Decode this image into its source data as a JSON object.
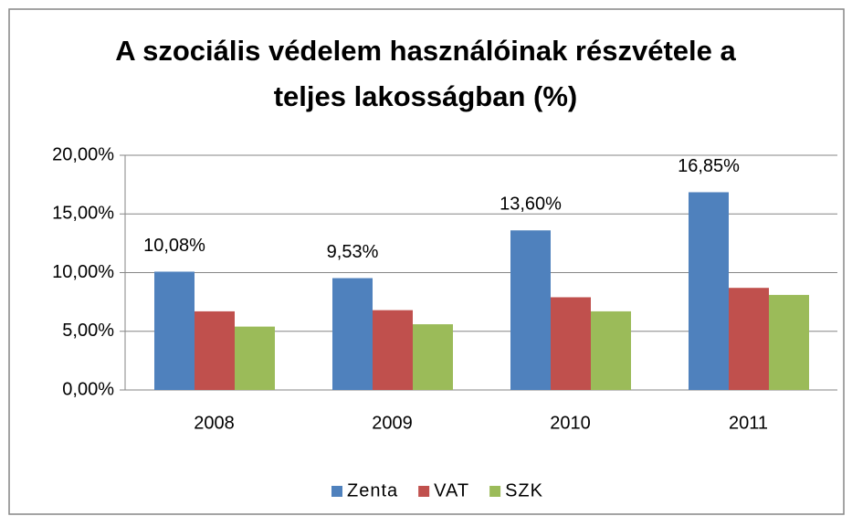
{
  "chart_data": {
    "type": "bar",
    "title": [
      "A szociális védelem használóinak részvétele  a",
      "teljes lakosságban (%)"
    ],
    "categories": [
      "2008",
      "2009",
      "2010",
      "2011"
    ],
    "series": [
      {
        "name": "Zenta",
        "color": "#4f81bd",
        "values": [
          10.08,
          9.53,
          13.6,
          16.85
        ],
        "value_labels": [
          "10,08%",
          "9,53%",
          "13,60%",
          "16,85%"
        ]
      },
      {
        "name": "VAT",
        "color": "#c0504d",
        "values": [
          6.7,
          6.8,
          7.9,
          8.7
        ]
      },
      {
        "name": "SZK",
        "color": "#9bbb59",
        "values": [
          5.4,
          5.6,
          6.7,
          8.1
        ]
      }
    ],
    "ylim": [
      0,
      20
    ],
    "yticks": [
      {
        "value": 0,
        "label": "0,00%"
      },
      {
        "value": 5,
        "label": "5,00%"
      },
      {
        "value": 10,
        "label": "10,00%"
      },
      {
        "value": 15,
        "label": "15,00%"
      },
      {
        "value": 20,
        "label": "20,00%"
      }
    ],
    "grid": true,
    "legend": "bottom"
  }
}
